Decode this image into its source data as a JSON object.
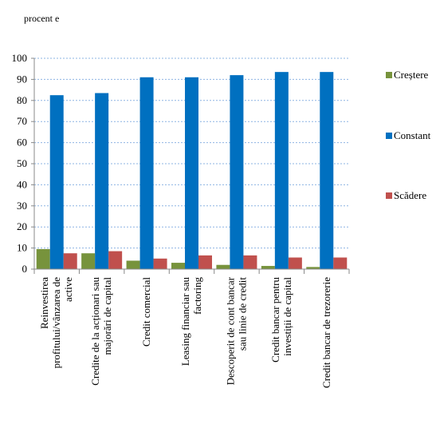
{
  "chart_data": {
    "type": "bar",
    "unit_label": "procent e",
    "categories": [
      [
        "Reinvestirea",
        "profitului/vânzarea de",
        "active"
      ],
      [
        "Credite de la acționari  sau",
        "majorări  de capital"
      ],
      [
        "Credit comercial"
      ],
      [
        "Leasing financiar sau",
        "factoring"
      ],
      [
        "Descoperit de cont bancar",
        "sau linie de credit"
      ],
      [
        "Credit bancar pentru",
        "investiții de capital"
      ],
      [
        "Credit bancar de trezorerie"
      ]
    ],
    "series": [
      {
        "name": "Creștere",
        "color": "#77933c",
        "values": [
          9.5,
          7.5,
          4,
          3,
          2,
          1.5,
          1
        ]
      },
      {
        "name": "Constant",
        "color": "#0070c0",
        "values": [
          82.5,
          83.5,
          91,
          91,
          92,
          93.5,
          93.5
        ]
      },
      {
        "name": "Scădere",
        "color": "#c0504d",
        "values": [
          7.5,
          8.5,
          5,
          6.5,
          6.5,
          5.5,
          5.5
        ]
      }
    ],
    "yticks": [
      "0",
      "10",
      "20",
      "30",
      "40",
      "50",
      "60",
      "70",
      "80",
      "90",
      "100"
    ],
    "ylim": [
      0,
      100
    ],
    "grid": true,
    "legend_position": "right"
  }
}
